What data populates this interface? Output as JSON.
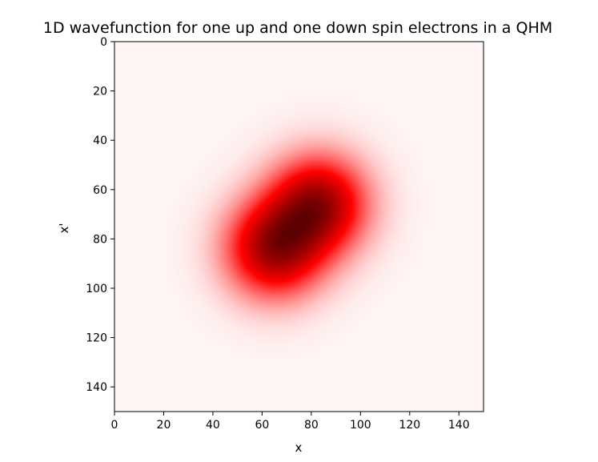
{
  "chart_data": {
    "type": "heatmap",
    "title": "1D wavefunction for one up and one down spin electrons in a QHM",
    "xlabel": "x",
    "ylabel": "x'",
    "xlim": [
      0,
      150
    ],
    "ylim": [
      150,
      0
    ],
    "x_ticks": [
      "0",
      "20",
      "40",
      "60",
      "80",
      "100",
      "120",
      "140"
    ],
    "y_ticks": [
      "0",
      "20",
      "40",
      "60",
      "80",
      "100",
      "120",
      "140"
    ],
    "colormap": [
      "#fff5f5",
      "#ff0000",
      "#5a0000"
    ],
    "peaks": [
      {
        "x": 83,
        "y": 66
      },
      {
        "x": 65,
        "y": 84
      }
    ]
  }
}
